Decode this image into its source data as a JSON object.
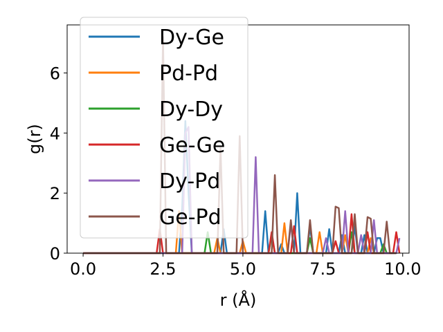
{
  "chart_data": {
    "type": "line",
    "xlabel": "r (Å)",
    "ylabel": "g(r)",
    "xlim": [
      -0.5,
      10.2
    ],
    "ylim": [
      0,
      7.6
    ],
    "x_ticks": [
      0.0,
      2.5,
      5.0,
      7.5,
      10.0
    ],
    "x_tick_labels": [
      "0.0",
      "2.5",
      "5.0",
      "7.5",
      "10.0"
    ],
    "y_ticks": [
      0,
      2,
      4,
      6
    ],
    "y_tick_labels": [
      "0",
      "2",
      "4",
      "6"
    ],
    "grid": false,
    "legend_position": "top-left",
    "series": [
      {
        "name": "Dy-Ge",
        "color": "#1f77b4",
        "points": [
          [
            0,
            0
          ],
          [
            3.0,
            0
          ],
          [
            3.1,
            1.5
          ],
          [
            3.2,
            4.4
          ],
          [
            3.3,
            2.0
          ],
          [
            3.4,
            0
          ],
          [
            4.3,
            0
          ],
          [
            4.4,
            0.8
          ],
          [
            4.5,
            0
          ],
          [
            5.6,
            0
          ],
          [
            5.7,
            1.4
          ],
          [
            5.8,
            0
          ],
          [
            6.1,
            0
          ],
          [
            6.2,
            0.3
          ],
          [
            6.3,
            0
          ],
          [
            6.6,
            0
          ],
          [
            6.7,
            2.0
          ],
          [
            6.8,
            0
          ],
          [
            7.0,
            0
          ],
          [
            7.1,
            0.9
          ],
          [
            7.2,
            0
          ],
          [
            7.6,
            0
          ],
          [
            7.7,
            0.8
          ],
          [
            7.8,
            0
          ],
          [
            8.0,
            0
          ],
          [
            8.1,
            0.6
          ],
          [
            8.2,
            0
          ],
          [
            8.4,
            0
          ],
          [
            8.5,
            0.9
          ],
          [
            8.6,
            0
          ],
          [
            8.7,
            0
          ],
          [
            8.8,
            0.6
          ],
          [
            8.9,
            0
          ],
          [
            9.1,
            0
          ],
          [
            9.2,
            0.5
          ],
          [
            9.3,
            0.5
          ],
          [
            9.4,
            0
          ],
          [
            9.8,
            0
          ]
        ]
      },
      {
        "name": "Pd-Pd",
        "color": "#ff7f0e",
        "points": [
          [
            0,
            0
          ],
          [
            2.9,
            0
          ],
          [
            3.0,
            1.4
          ],
          [
            3.1,
            0
          ],
          [
            4.1,
            0
          ],
          [
            4.2,
            0.5
          ],
          [
            4.3,
            0
          ],
          [
            4.9,
            0
          ],
          [
            5.0,
            0.4
          ],
          [
            5.1,
            0
          ],
          [
            6.2,
            0
          ],
          [
            6.3,
            1.0
          ],
          [
            6.4,
            0
          ],
          [
            7.3,
            0
          ],
          [
            7.4,
            0.7
          ],
          [
            7.5,
            0
          ],
          [
            8.1,
            0
          ],
          [
            8.2,
            0.6
          ],
          [
            8.3,
            0
          ],
          [
            8.9,
            0
          ],
          [
            9.0,
            0.5
          ],
          [
            9.1,
            0
          ],
          [
            9.8,
            0
          ]
        ]
      },
      {
        "name": "Dy-Dy",
        "color": "#2ca02c",
        "points": [
          [
            0,
            0
          ],
          [
            3.8,
            0
          ],
          [
            3.9,
            0.7
          ],
          [
            4.0,
            0
          ],
          [
            5.8,
            0
          ],
          [
            5.9,
            0.6
          ],
          [
            6.0,
            0
          ],
          [
            7.0,
            0
          ],
          [
            7.1,
            0.5
          ],
          [
            7.2,
            0
          ],
          [
            8.3,
            0
          ],
          [
            8.4,
            0.7
          ],
          [
            8.5,
            0
          ],
          [
            9.3,
            0
          ],
          [
            9.4,
            0.3
          ],
          [
            9.5,
            0
          ],
          [
            9.8,
            0
          ]
        ]
      },
      {
        "name": "Ge-Ge",
        "color": "#d62728",
        "points": [
          [
            0,
            0
          ],
          [
            2.3,
            0
          ],
          [
            2.4,
            0.8
          ],
          [
            2.5,
            0
          ],
          [
            5.8,
            0
          ],
          [
            5.9,
            0.7
          ],
          [
            6.0,
            0
          ],
          [
            6.5,
            0
          ],
          [
            6.6,
            0.9
          ],
          [
            6.7,
            0
          ],
          [
            7.8,
            0
          ],
          [
            7.9,
            0.4
          ],
          [
            8.0,
            0
          ],
          [
            8.3,
            0
          ],
          [
            8.4,
            1.3
          ],
          [
            8.5,
            0
          ],
          [
            8.8,
            0
          ],
          [
            8.9,
            0.7
          ],
          [
            9.0,
            0
          ],
          [
            9.7,
            0
          ],
          [
            9.8,
            0.7
          ],
          [
            9.9,
            0
          ]
        ]
      },
      {
        "name": "Dy-Pd",
        "color": "#9467bd",
        "points": [
          [
            0,
            0
          ],
          [
            3.1,
            0
          ],
          [
            3.2,
            4.0
          ],
          [
            3.3,
            4.2
          ],
          [
            3.4,
            0
          ],
          [
            5.3,
            0
          ],
          [
            5.4,
            3.2
          ],
          [
            5.5,
            0
          ],
          [
            6.4,
            0
          ],
          [
            6.5,
            1.0
          ],
          [
            6.6,
            0
          ],
          [
            7.5,
            0
          ],
          [
            7.6,
            0.5
          ],
          [
            7.7,
            0
          ],
          [
            8.1,
            0
          ],
          [
            8.2,
            1.4
          ],
          [
            8.3,
            0
          ],
          [
            8.6,
            0
          ],
          [
            8.7,
            0.6
          ],
          [
            8.8,
            0
          ],
          [
            9.0,
            0
          ],
          [
            9.1,
            1.1
          ],
          [
            9.2,
            0
          ],
          [
            9.8,
            0
          ],
          [
            9.9,
            0.5
          ]
        ]
      },
      {
        "name": "Ge-Pd",
        "color": "#8c564b",
        "points": [
          [
            0,
            0
          ],
          [
            2.4,
            0
          ],
          [
            2.5,
            7.2
          ],
          [
            2.6,
            0
          ],
          [
            4.2,
            0
          ],
          [
            4.3,
            3.5
          ],
          [
            4.4,
            0
          ],
          [
            4.8,
            0
          ],
          [
            4.9,
            3.9
          ],
          [
            5.0,
            0
          ],
          [
            5.9,
            0
          ],
          [
            6.0,
            2.6
          ],
          [
            6.1,
            0
          ],
          [
            6.4,
            0
          ],
          [
            6.5,
            1.1
          ],
          [
            6.6,
            0
          ],
          [
            7.0,
            0
          ],
          [
            7.1,
            1.1
          ],
          [
            7.2,
            0
          ],
          [
            7.8,
            0
          ],
          [
            7.9,
            1.55
          ],
          [
            8.0,
            1.5
          ],
          [
            8.1,
            0
          ],
          [
            8.4,
            0
          ],
          [
            8.5,
            1.3
          ],
          [
            8.6,
            0
          ],
          [
            8.8,
            0
          ],
          [
            8.9,
            1.2
          ],
          [
            9.0,
            1.15
          ],
          [
            9.1,
            0
          ],
          [
            9.4,
            0
          ],
          [
            9.5,
            1.05
          ],
          [
            9.6,
            0
          ],
          [
            9.8,
            0
          ]
        ]
      }
    ]
  }
}
